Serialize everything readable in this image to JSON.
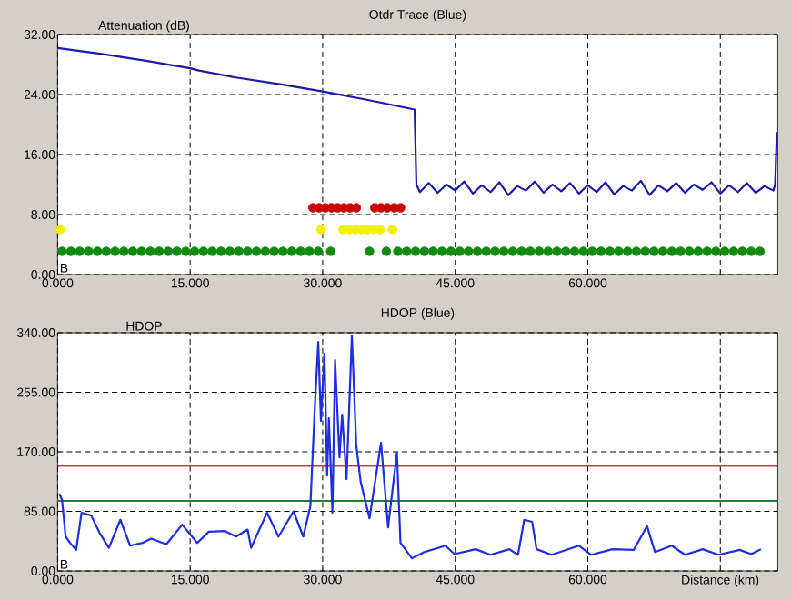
{
  "chart_data": [
    {
      "type": "line",
      "title": "Otdr Trace (Blue)",
      "ylabel": "Attenuation (dB)",
      "annotations": [
        "B"
      ],
      "grid": true,
      "xlim": [
        0,
        81.5
      ],
      "ylim": [
        0,
        32
      ],
      "xticks": [
        {
          "value": 0,
          "label": "0.000"
        },
        {
          "value": 15,
          "label": "15.000"
        },
        {
          "value": 30,
          "label": "30.000"
        },
        {
          "value": 45,
          "label": "45.000"
        },
        {
          "value": 60,
          "label": "60.000"
        },
        {
          "value": 75,
          "label": null
        }
      ],
      "yticks": [
        {
          "value": 0,
          "label": "0.00"
        },
        {
          "value": 8,
          "label": "8.00"
        },
        {
          "value": 16,
          "label": "16.00"
        },
        {
          "value": 24,
          "label": "24.00"
        },
        {
          "value": 32,
          "label": "32.00"
        }
      ],
      "series": [
        {
          "color": "#1c1ca8",
          "x": [
            0,
            5,
            10,
            15,
            16,
            20,
            25,
            30,
            35,
            40.4,
            40.6,
            41,
            42,
            43,
            44,
            45,
            46,
            47,
            48,
            49,
            50,
            51,
            52,
            53,
            54,
            55,
            56,
            57,
            58,
            59,
            60,
            61,
            62,
            63,
            64,
            65,
            66,
            67,
            68,
            69,
            70,
            71,
            72,
            73,
            74,
            75,
            76,
            77,
            78,
            79,
            80,
            81,
            81.2,
            81.4
          ],
          "values": [
            30.2,
            29.4,
            28.5,
            27.5,
            27.2,
            26.3,
            25.4,
            24.4,
            23.3,
            22.0,
            12.0,
            11.0,
            12.2,
            10.9,
            12.0,
            11.2,
            12.4,
            10.8,
            11.9,
            11.0,
            12.3,
            10.6,
            11.8,
            11.2,
            12.4,
            10.9,
            12.0,
            11.1,
            12.2,
            10.8,
            11.9,
            11.0,
            12.3,
            10.7,
            11.8,
            11.2,
            12.5,
            10.6,
            11.9,
            11.1,
            12.2,
            10.9,
            12.0,
            11.3,
            12.3,
            10.8,
            11.9,
            11.0,
            12.2,
            10.9,
            11.8,
            11.2,
            12.0,
            19.0
          ]
        },
        {
          "type": "scatter",
          "marker": "circle",
          "color": "#cc0000",
          "x": [
            28.9,
            29.6,
            30.3,
            31.0,
            31.7,
            32.4,
            33.1,
            33.8,
            35.9,
            36.6,
            37.3,
            38.1,
            38.8
          ],
          "values": [
            8.9,
            8.9,
            8.9,
            8.9,
            8.9,
            8.9,
            8.9,
            8.9,
            8.9,
            8.9,
            8.9,
            8.9,
            8.9
          ]
        },
        {
          "type": "scatter",
          "marker": "circle",
          "color": "#f0f000",
          "x": [
            0.3,
            29.8,
            32.3,
            33.0,
            33.7,
            34.4,
            35.1,
            35.8,
            36.5,
            37.9
          ],
          "values": [
            6.0,
            6.0,
            6.0,
            6.0,
            6.0,
            6.0,
            6.0,
            6.0,
            6.0,
            6.0
          ]
        },
        {
          "type": "scatter",
          "marker": "circle",
          "color": "#108a10",
          "x": [
            0.5,
            1.5,
            2.5,
            3.5,
            4.5,
            5.5,
            6.5,
            7.5,
            8.5,
            9.5,
            10.5,
            11.5,
            12.5,
            13.5,
            14.5,
            15.5,
            16.5,
            17.5,
            18.5,
            19.5,
            20.5,
            21.5,
            22.5,
            23.5,
            24.5,
            25.5,
            26.5,
            27.5,
            28.5,
            29.5,
            30.9,
            35.3,
            37.2,
            38.5,
            39.5,
            40.5,
            41.5,
            42.5,
            43.5,
            44.5,
            45.5,
            46.5,
            47.5,
            48.5,
            49.5,
            50.5,
            51.5,
            52.5,
            53.5,
            54.5,
            55.5,
            56.5,
            57.5,
            58.5,
            59.5,
            60.5,
            61.5,
            62.5,
            63.5,
            64.5,
            65.5,
            66.5,
            67.5,
            68.5,
            69.5,
            70.5,
            71.5,
            72.5,
            73.5,
            74.5,
            75.5,
            76.5,
            77.5,
            78.5,
            79.5
          ],
          "values": [
            3.1,
            3.1,
            3.1,
            3.1,
            3.1,
            3.1,
            3.1,
            3.1,
            3.1,
            3.1,
            3.1,
            3.1,
            3.1,
            3.1,
            3.1,
            3.1,
            3.1,
            3.1,
            3.1,
            3.1,
            3.1,
            3.1,
            3.1,
            3.1,
            3.1,
            3.1,
            3.1,
            3.1,
            3.1,
            3.1,
            3.1,
            3.1,
            3.1,
            3.1,
            3.1,
            3.1,
            3.1,
            3.1,
            3.1,
            3.1,
            3.1,
            3.1,
            3.1,
            3.1,
            3.1,
            3.1,
            3.1,
            3.1,
            3.1,
            3.1,
            3.1,
            3.1,
            3.1,
            3.1,
            3.1,
            3.1,
            3.1,
            3.1,
            3.1,
            3.1,
            3.1,
            3.1,
            3.1,
            3.1,
            3.1,
            3.1,
            3.1,
            3.1,
            3.1,
            3.1,
            3.1,
            3.1,
            3.1,
            3.1,
            3.1
          ]
        }
      ]
    },
    {
      "type": "line",
      "title": "HDOP (Blue)",
      "ylabel": "HDOP",
      "xlabel": "Distance (km)",
      "annotations": [
        "B"
      ],
      "grid": true,
      "xlim": [
        0,
        81.5
      ],
      "ylim": [
        0,
        340
      ],
      "xticks": [
        {
          "value": 0,
          "label": "0.000"
        },
        {
          "value": 15,
          "label": "15.000"
        },
        {
          "value": 30,
          "label": "30.000"
        },
        {
          "value": 45,
          "label": "45.000"
        },
        {
          "value": 60,
          "label": "60.000"
        },
        {
          "value": 75,
          "label": null
        }
      ],
      "yticks": [
        {
          "value": 0,
          "label": "0.00"
        },
        {
          "value": 85,
          "label": "85.00"
        },
        {
          "value": 170,
          "label": "170.00"
        },
        {
          "value": 255,
          "label": "255.00"
        },
        {
          "value": 340,
          "label": "340.00"
        }
      ],
      "ref_lines": [
        {
          "axis": "y",
          "value": 150,
          "color": "#c0404a"
        },
        {
          "axis": "y",
          "value": 100,
          "color": "#2e7d32"
        }
      ],
      "series": [
        {
          "color": "#1e2ee0",
          "x": [
            0.2,
            0.5,
            0.9,
            1.4,
            2.1,
            2.7,
            3.8,
            4.8,
            5.8,
            7.1,
            8.2,
            9.6,
            10.6,
            12.3,
            14.1,
            15.8,
            17.1,
            18.9,
            20.2,
            21.5,
            21.9,
            23.7,
            25.0,
            26.7,
            27.8,
            28.6,
            29.1,
            29.5,
            29.8,
            30.2,
            30.5,
            30.7,
            31.1,
            31.4,
            31.9,
            32.2,
            32.7,
            33.3,
            33.8,
            34.3,
            35.3,
            36.6,
            37.4,
            38.4,
            38.8,
            40.1,
            41.5,
            43.9,
            44.9,
            47.3,
            49.0,
            51.1,
            52.1,
            52.8,
            53.7,
            54.2,
            55.9,
            59.0,
            60.4,
            62.8,
            65.2,
            66.7,
            67.6,
            69.5,
            71.0,
            73.0,
            74.8,
            77.2,
            78.5,
            79.6
          ],
          "values": [
            110,
            101,
            49,
            40,
            30,
            83,
            79,
            53,
            33,
            73,
            36,
            40,
            46,
            38,
            66,
            40,
            56,
            57,
            49,
            59,
            33,
            83,
            49,
            85,
            49,
            92,
            231,
            327,
            214,
            310,
            136,
            218,
            83,
            301,
            162,
            223,
            131,
            336,
            179,
            127,
            75,
            183,
            62,
            169,
            40,
            18,
            27,
            36,
            24,
            31,
            23,
            31,
            23,
            73,
            70,
            31,
            23,
            36,
            23,
            31,
            30,
            64,
            27,
            36,
            23,
            31,
            23,
            30,
            24,
            31
          ]
        }
      ]
    }
  ]
}
